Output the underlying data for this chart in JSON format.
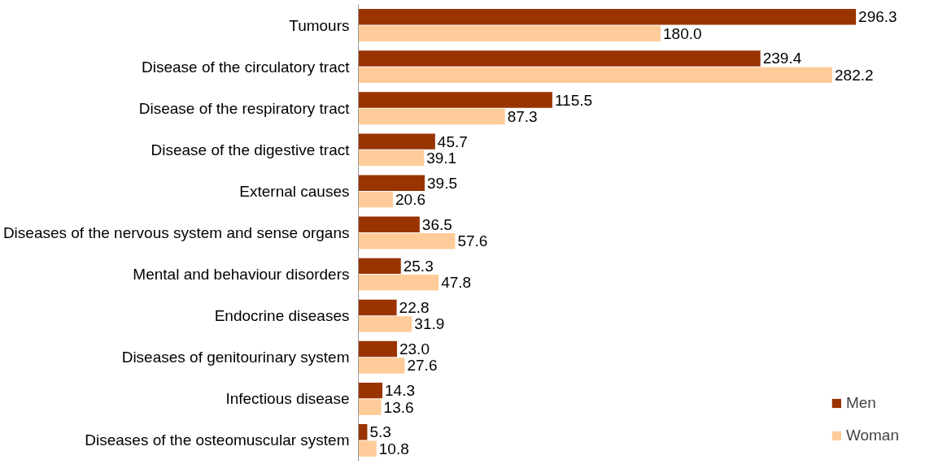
{
  "chart_data": {
    "type": "bar",
    "orientation": "horizontal",
    "legend": "bottom right",
    "grid": false,
    "categories": [
      "Tumours",
      "Disease of the circulatory tract",
      "Disease of the respiratory tract",
      "Disease of the digestive tract",
      "External causes",
      "Diseases of the nervous system and sense organs",
      "Mental and behaviour disorders",
      "Endocrine diseases",
      "Diseases of genitourinary system",
      "Infectious disease",
      "Diseases of the osteomuscular system"
    ],
    "series": [
      {
        "name": "Men",
        "color": "#993300",
        "values": [
          296.3,
          239.4,
          115.5,
          45.7,
          39.5,
          36.5,
          25.3,
          22.8,
          23.0,
          14.3,
          5.3
        ],
        "value_labels": [
          "296.3",
          "239.4",
          "115.5",
          "45.7",
          "39.5",
          "36.5",
          "25.3",
          "22.8",
          "23.0",
          "14.3",
          "5.3"
        ]
      },
      {
        "name": "Woman",
        "color": "#ffcc99",
        "values": [
          180.0,
          282.2,
          87.3,
          39.1,
          20.6,
          57.6,
          47.8,
          31.9,
          27.6,
          13.6,
          10.8
        ],
        "value_labels": [
          "180.0",
          "282.2",
          "87.3",
          "39.1",
          "20.6",
          "57.6",
          "47.8",
          "31.9",
          "27.6",
          "13.6",
          "10.8"
        ]
      }
    ]
  }
}
